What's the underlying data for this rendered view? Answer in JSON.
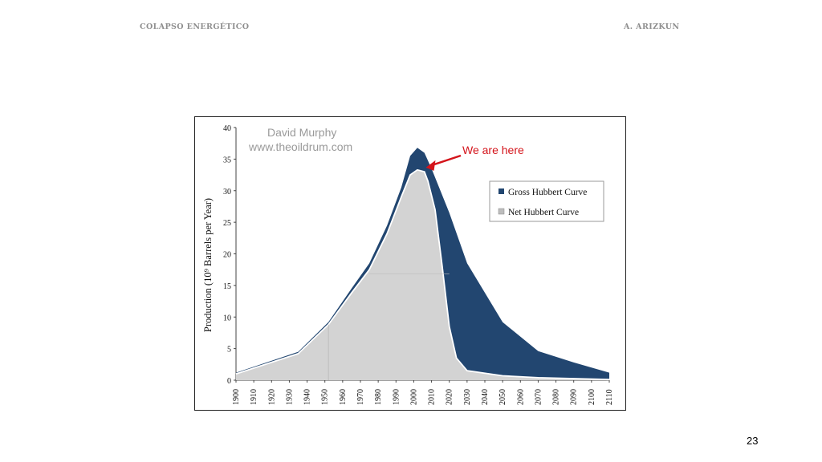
{
  "header": {
    "left": "COLAPSO ENERGÉTICO",
    "right": "A. ARIZKUN"
  },
  "page_number": "23",
  "chart_data": {
    "type": "area",
    "ylabel": "Production (10⁹ Barrels per Year)",
    "ylim": [
      0,
      40
    ],
    "yticks": [
      "0",
      "5",
      "10",
      "15",
      "20",
      "25",
      "30",
      "35",
      "40"
    ],
    "xticks": [
      "1900",
      "1910",
      "1920",
      "1930",
      "1940",
      "1950",
      "1960",
      "1970",
      "1980",
      "1990",
      "2000",
      "2010",
      "2020",
      "2030",
      "2040",
      "2050",
      "2060",
      "2070",
      "2080",
      "2090",
      "2100",
      "2110"
    ],
    "credit": [
      "David Murphy",
      "www.theoildrum.com"
    ],
    "annotation": "We are here",
    "annotation_x": 2005,
    "legend": {
      "placement": "right",
      "items": [
        "Gross Hubbert Curve",
        "Net Hubbert Curve"
      ]
    },
    "series": [
      {
        "name": "Gross Hubbert Curve",
        "color": "#224670",
        "x": [
          1900,
          1935,
          1952,
          1965,
          1975,
          1985,
          1993,
          1998,
          2002,
          2006,
          2010,
          2020,
          2030,
          2050,
          2070,
          2090,
          2110
        ],
        "values": [
          1.2,
          4.5,
          9.2,
          14.5,
          18.5,
          24.5,
          30.5,
          35.5,
          36.8,
          36.0,
          33.5,
          26.5,
          18.5,
          9.2,
          4.6,
          2.8,
          1.2
        ]
      },
      {
        "name": "Net Hubbert Curve",
        "color": "#d3d3d3",
        "x": [
          1900,
          1935,
          1952,
          1965,
          1975,
          1985,
          1993,
          1998,
          2002,
          2006,
          2008,
          2012,
          2016,
          2020,
          2024,
          2030,
          2050,
          2070,
          2110
        ],
        "values": [
          1.0,
          4.2,
          8.8,
          13.8,
          17.5,
          23.2,
          29.0,
          32.5,
          33.3,
          33.0,
          31.5,
          27.0,
          18.0,
          8.5,
          3.5,
          1.5,
          0.7,
          0.4,
          0.1
        ]
      }
    ]
  }
}
